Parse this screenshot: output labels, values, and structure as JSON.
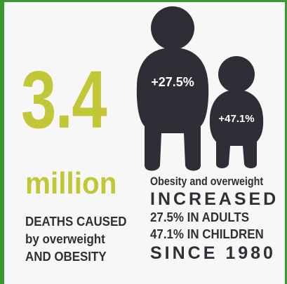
{
  "headline_number": "3.4",
  "headline_unit": "million",
  "left_text": [
    "DEATHS CAUSED",
    "by overweight",
    "AND OBESITY"
  ],
  "adult_figure": {
    "label": "+27.5%"
  },
  "child_figure": {
    "label": "+47.1%"
  },
  "right_text": {
    "line1": "Obesity and overweight",
    "line2": "INCREASED",
    "line3": "27.5% IN ADULTS",
    "line4": "47.1% IN CHILDREN",
    "line5": "SINCE 1980"
  },
  "colors": {
    "accent": "#c2c737",
    "text": "#2f2f35",
    "figure": "#2e2f36",
    "border": "#3a9a32",
    "background": "#f7f7f7"
  },
  "icons": [
    "adult-silhouette-icon",
    "child-silhouette-icon"
  ]
}
